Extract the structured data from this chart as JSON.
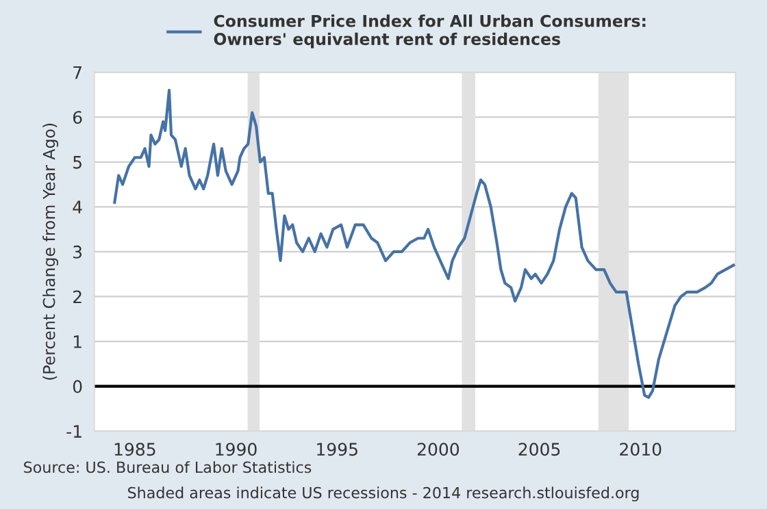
{
  "chart_data": {
    "type": "line",
    "ylabel": "(Percent Change from Year Ago)",
    "x": [
      1984.0,
      1984.2,
      1984.4,
      1984.7,
      1985.0,
      1985.3,
      1985.5,
      1985.7,
      1985.8,
      1986.0,
      1986.2,
      1986.4,
      1986.5,
      1986.7,
      1986.8,
      1987.0,
      1987.3,
      1987.5,
      1987.7,
      1988.0,
      1988.2,
      1988.4,
      1988.6,
      1988.9,
      1989.1,
      1989.3,
      1989.5,
      1989.8,
      1990.1,
      1990.2,
      1990.4,
      1990.6,
      1990.8,
      1991.0,
      1991.2,
      1991.4,
      1991.6,
      1991.8,
      1992.0,
      1992.2,
      1992.4,
      1992.6,
      1992.8,
      1993.0,
      1993.3,
      1993.6,
      1993.9,
      1994.2,
      1994.5,
      1994.8,
      1995.2,
      1995.5,
      1995.9,
      1996.3,
      1996.7,
      1997.0,
      1997.4,
      1997.8,
      1998.2,
      1998.6,
      1999.0,
      1999.3,
      1999.5,
      1999.8,
      2000.2,
      2000.5,
      2000.7,
      2001.0,
      2001.3,
      2001.6,
      2001.9,
      2002.1,
      2002.3,
      2002.6,
      2002.9,
      2003.1,
      2003.3,
      2003.6,
      2003.8,
      2004.1,
      2004.3,
      2004.6,
      2004.8,
      2005.1,
      2005.4,
      2005.7,
      2006.0,
      2006.3,
      2006.6,
      2006.8,
      2007.1,
      2007.4,
      2007.8,
      2008.2,
      2008.5,
      2008.8,
      2009.3,
      2009.6,
      2009.9,
      2010.2,
      2010.4,
      2010.6,
      2010.9,
      2011.3,
      2011.7,
      2012.0,
      2012.3,
      2012.8,
      2013.2,
      2013.5,
      2013.8,
      2014.2,
      2014.6
    ],
    "series": [
      {
        "name": "Consumer Price Index for All Urban Consumers: Owners' equivalent rent of residences",
        "color": "#4572a7",
        "values": [
          4.1,
          4.7,
          4.5,
          4.9,
          5.1,
          5.1,
          5.3,
          4.9,
          5.6,
          5.4,
          5.5,
          5.9,
          5.7,
          6.6,
          5.6,
          5.5,
          4.9,
          5.3,
          4.7,
          4.4,
          4.6,
          4.4,
          4.7,
          5.4,
          4.7,
          5.3,
          4.8,
          4.5,
          4.8,
          5.1,
          5.3,
          5.4,
          6.1,
          5.8,
          5.0,
          5.1,
          4.3,
          4.3,
          3.5,
          2.8,
          3.8,
          3.5,
          3.6,
          3.2,
          3.0,
          3.3,
          3.0,
          3.4,
          3.1,
          3.5,
          3.6,
          3.1,
          3.6,
          3.6,
          3.3,
          3.2,
          2.8,
          3.0,
          3.0,
          3.2,
          3.3,
          3.3,
          3.5,
          3.1,
          2.7,
          2.4,
          2.8,
          3.1,
          3.3,
          3.8,
          4.3,
          4.6,
          4.5,
          4.0,
          3.2,
          2.6,
          2.3,
          2.2,
          1.9,
          2.2,
          2.6,
          2.4,
          2.5,
          2.3,
          2.5,
          2.8,
          3.5,
          4.0,
          4.3,
          4.2,
          3.1,
          2.8,
          2.6,
          2.6,
          2.3,
          2.1,
          2.1,
          1.3,
          0.5,
          -0.2,
          -0.25,
          -0.1,
          0.6,
          1.2,
          1.8,
          2.0,
          2.1,
          2.1,
          2.2,
          2.3,
          2.5,
          2.6,
          2.7
        ]
      }
    ],
    "xlim": [
      1983.0,
      2014.7
    ],
    "xticks": [
      1985,
      1990,
      1995,
      2000,
      2005,
      2010
    ],
    "ylim": [
      -1,
      7
    ],
    "yticks": [
      -1,
      0,
      1,
      2,
      3,
      4,
      5,
      6,
      7
    ],
    "grid": "y",
    "legend": "top",
    "ref_lines": [
      {
        "axis": "y",
        "value": 0,
        "color": "#000000"
      }
    ],
    "bands": [
      {
        "axis": "x",
        "from": 1990.58,
        "to": 1991.17,
        "color": "#e1e1e1"
      },
      {
        "axis": "x",
        "from": 2001.17,
        "to": 2001.83,
        "color": "#e1e1e1"
      },
      {
        "axis": "x",
        "from": 2007.92,
        "to": 2009.42,
        "color": "#e1e1e1"
      }
    ],
    "annotations": [
      "Source: US. Bureau of Labor Statistics",
      "Shaded areas indicate US recessions - 2014 research.stlouisfed.org"
    ]
  }
}
